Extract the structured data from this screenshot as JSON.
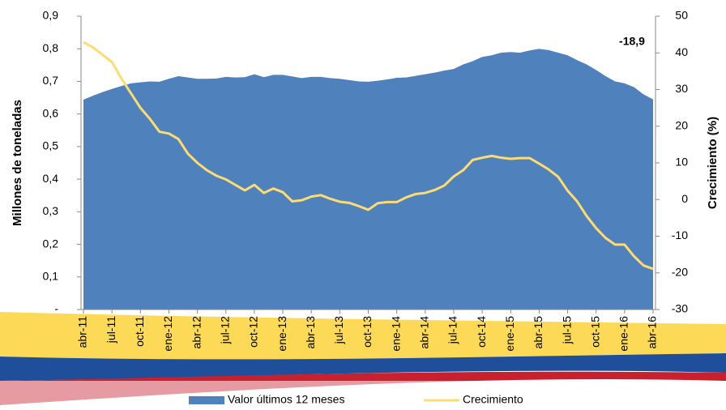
{
  "chart_data": {
    "type": "area-line",
    "categories": [
      "abr-11",
      null,
      null,
      "jul-11",
      null,
      null,
      "oct-11",
      null,
      null,
      "ene-12",
      null,
      null,
      "abr-12",
      null,
      null,
      "jul-12",
      null,
      null,
      "oct-12",
      null,
      null,
      "ene-13",
      null,
      null,
      "abr-13",
      null,
      null,
      "jul-13",
      null,
      null,
      "oct-13",
      null,
      null,
      "ene-14",
      null,
      null,
      "abr-14",
      null,
      null,
      "jul-14",
      null,
      null,
      "oct-14",
      null,
      null,
      "ene-15",
      null,
      null,
      "abr-15",
      null,
      null,
      "jul-15",
      null,
      null,
      "oct-15",
      null,
      null,
      "ene-16",
      null,
      null,
      "abr-16"
    ],
    "series": [
      {
        "name": "Valor últimos 12 meses",
        "color": "#4f81bd",
        "kind": "area",
        "values": [
          0.644,
          0.656,
          0.667,
          0.677,
          0.686,
          0.694,
          0.697,
          0.7,
          0.699,
          0.708,
          0.716,
          0.712,
          0.708,
          0.708,
          0.709,
          0.714,
          0.712,
          0.713,
          0.722,
          0.713,
          0.72,
          0.72,
          0.715,
          0.71,
          0.714,
          0.714,
          0.71,
          0.708,
          0.704,
          0.7,
          0.699,
          0.702,
          0.706,
          0.711,
          0.712,
          0.717,
          0.722,
          0.727,
          0.733,
          0.738,
          0.752,
          0.762,
          0.775,
          0.78,
          0.788,
          0.79,
          0.788,
          0.795,
          0.8,
          0.796,
          0.788,
          0.78,
          0.765,
          0.752,
          0.735,
          0.716,
          0.7,
          0.694,
          0.682,
          0.66,
          0.645
        ]
      },
      {
        "name": "Crecimiento",
        "color": "#fcdc72",
        "kind": "line",
        "axis": "y2",
        "values": [
          42.9,
          41.5,
          39.5,
          37.5,
          33,
          29,
          25,
          22,
          18.5,
          18,
          16.5,
          12.5,
          10,
          8,
          6.5,
          5.5,
          4,
          2.5,
          4.0,
          1.8,
          3.0,
          2.0,
          -0.5,
          -0.2,
          0.8,
          1.2,
          0.2,
          -0.6,
          -0.9,
          -1.8,
          -2.8,
          -1.0,
          -0.7,
          -0.7,
          0.6,
          1.5,
          1.8,
          2.6,
          3.8,
          6.3,
          8.0,
          10.8,
          11.4,
          11.9,
          11.4,
          11.1,
          11.3,
          11.3,
          9.8,
          8.2,
          6.2,
          2.4,
          -0.5,
          -4.5,
          -7.8,
          -10.5,
          -12.3,
          -12.3,
          -15.5,
          -18.0,
          -18.9
        ]
      }
    ],
    "ylim": [
      0,
      0.9
    ],
    "yticks": [
      {
        "value": 0,
        "label": "-"
      },
      {
        "value": 0.1,
        "label": "0,1"
      },
      {
        "value": 0.2,
        "label": "0,2"
      },
      {
        "value": 0.3,
        "label": "0,3"
      },
      {
        "value": 0.4,
        "label": "0,4"
      },
      {
        "value": 0.5,
        "label": "0,5"
      },
      {
        "value": 0.6,
        "label": "0,6"
      },
      {
        "value": 0.7,
        "label": "0,7"
      },
      {
        "value": 0.8,
        "label": "0,8"
      },
      {
        "value": 0.9,
        "label": "0,9"
      }
    ],
    "y2lim": [
      -30,
      50
    ],
    "y2ticks": [
      -30,
      -20,
      -10,
      0,
      10,
      20,
      30,
      40,
      50
    ],
    "ylabel": "Millones de toneladas",
    "y2label": "Crecimiento (%)",
    "annotation": {
      "text": "-18,9",
      "value": -18.9
    },
    "legend": "bottom"
  }
}
